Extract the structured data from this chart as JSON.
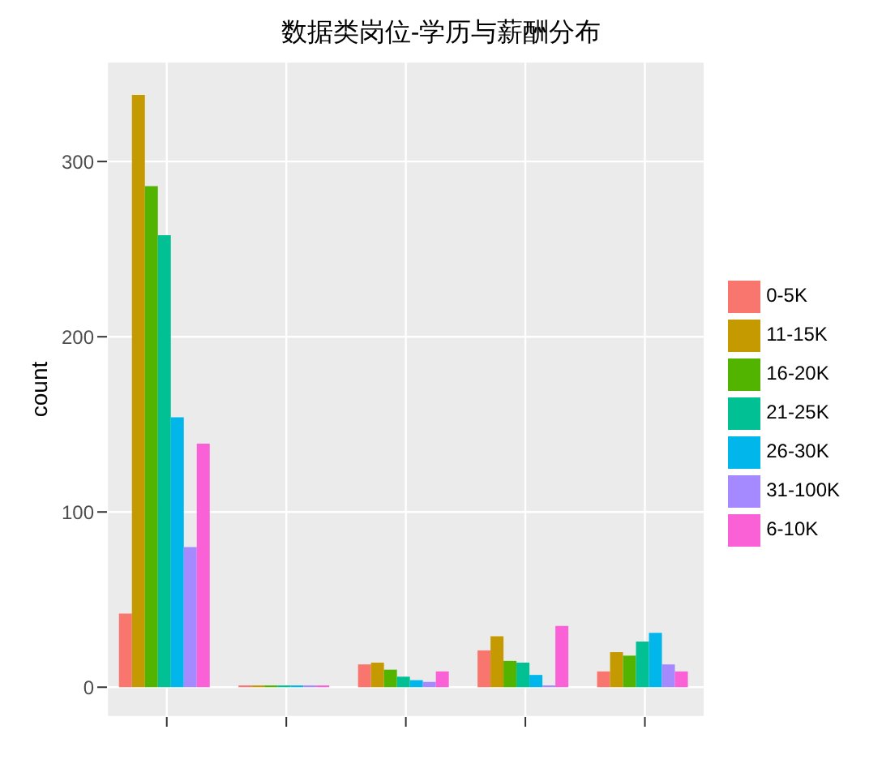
{
  "chart_data": {
    "type": "bar",
    "title": "数据类岗位-学历与薪酬分布",
    "ylabel": "count",
    "categories": [
      null,
      null,
      null,
      null,
      null
    ],
    "series": [
      {
        "name": "0-5K",
        "color": "#f8766d",
        "values": [
          42,
          1,
          13,
          21,
          9
        ]
      },
      {
        "name": "11-15K",
        "color": "#c49a00",
        "values": [
          338,
          1,
          14,
          29,
          20
        ]
      },
      {
        "name": "16-20K",
        "color": "#53b400",
        "values": [
          286,
          1,
          10,
          15,
          18
        ]
      },
      {
        "name": "21-25K",
        "color": "#00c094",
        "values": [
          258,
          1,
          6,
          14,
          26
        ]
      },
      {
        "name": "26-30K",
        "color": "#00b6eb",
        "values": [
          154,
          1,
          4,
          7,
          31
        ]
      },
      {
        "name": "31-100K",
        "color": "#a58aff",
        "values": [
          80,
          1,
          3,
          1,
          13
        ]
      },
      {
        "name": "6-10K",
        "color": "#fb61d7",
        "values": [
          139,
          1,
          9,
          35,
          9
        ]
      }
    ],
    "ylim": [
      -17,
      357
    ],
    "yticks": [
      0,
      100,
      200,
      300
    ],
    "grid": true,
    "legend": "right",
    "tick_labels": "y"
  }
}
